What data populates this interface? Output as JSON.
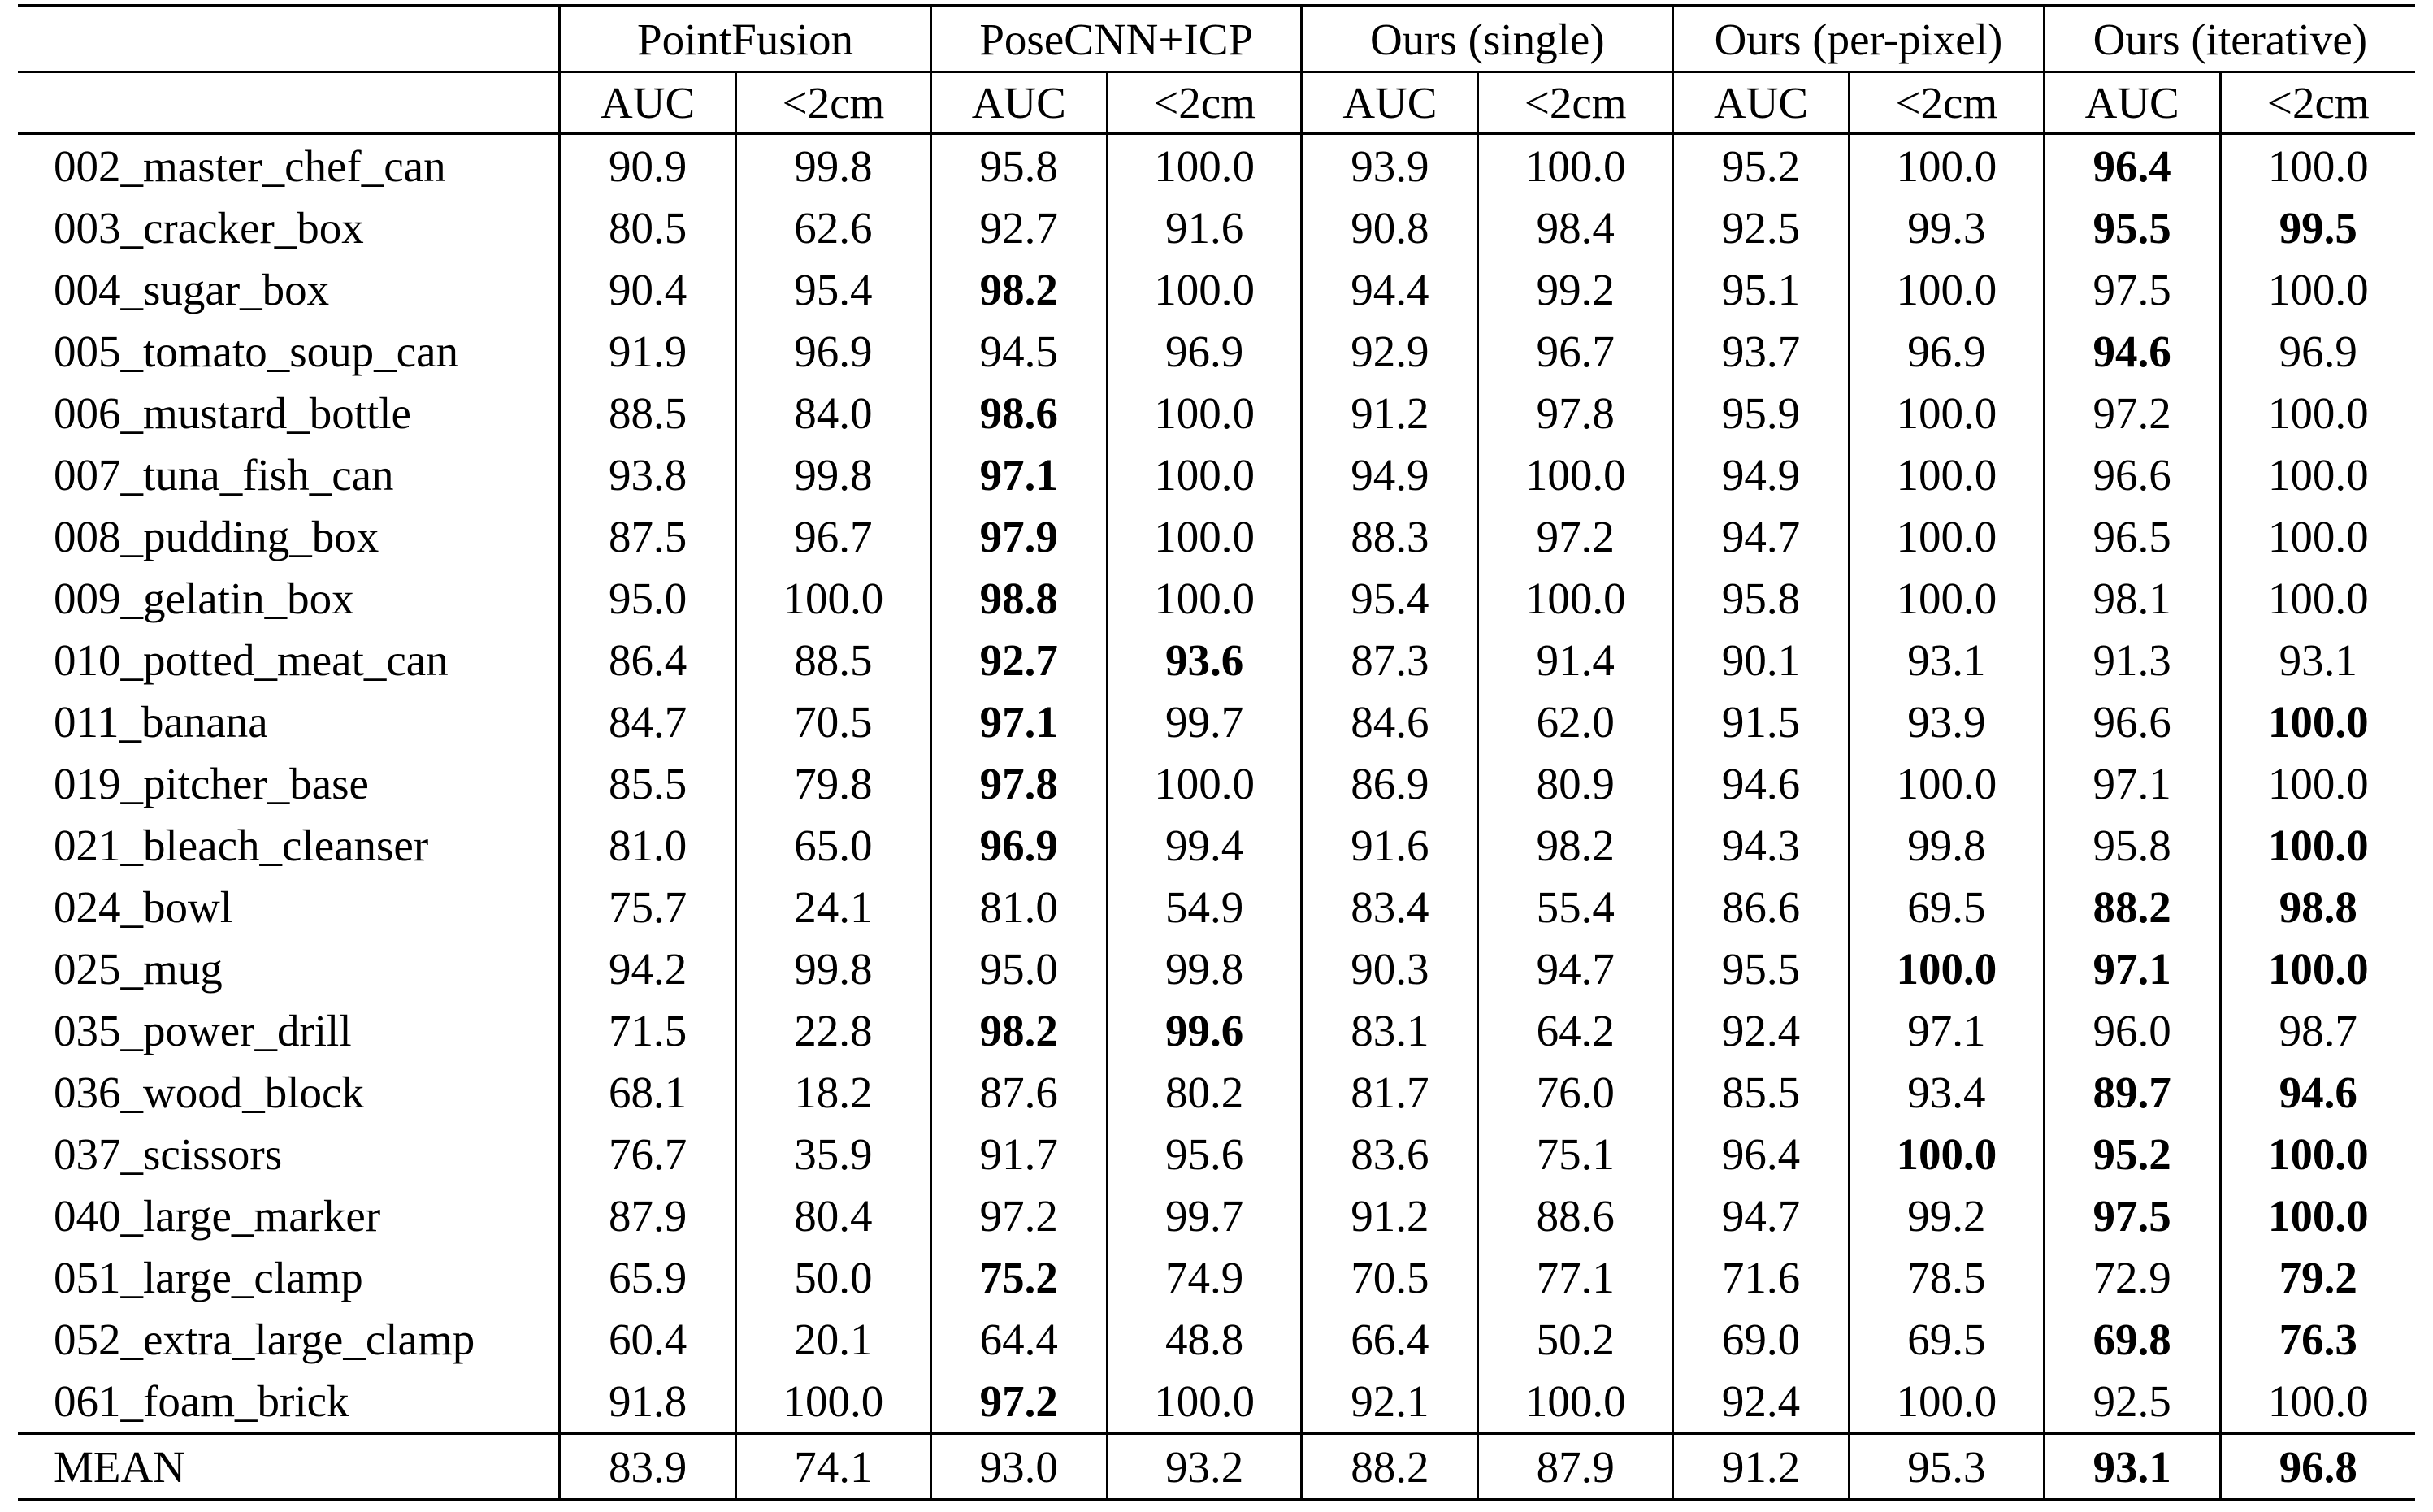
{
  "table": {
    "row_label_header": "",
    "groups": [
      {
        "label": "PointFusion",
        "sub": [
          "AUC",
          "<2cm"
        ]
      },
      {
        "label": "PoseCNN+ICP",
        "sub": [
          "AUC",
          "<2cm"
        ]
      },
      {
        "label": "Ours (single)",
        "sub": [
          "AUC",
          "<2cm"
        ]
      },
      {
        "label": "Ours (per-pixel)",
        "sub": [
          "AUC",
          "<2cm"
        ]
      },
      {
        "label": "Ours (iterative)",
        "sub": [
          "AUC",
          "<2cm"
        ]
      }
    ],
    "rows": [
      {
        "name": "002_master_chef_can",
        "values": [
          "90.9",
          "99.8",
          "95.8",
          "100.0",
          "93.9",
          "100.0",
          "95.2",
          "100.0",
          "96.4",
          "100.0"
        ],
        "bold": [
          8
        ],
        "is_mean": false
      },
      {
        "name": "003_cracker_box",
        "values": [
          "80.5",
          "62.6",
          "92.7",
          "91.6",
          "90.8",
          "98.4",
          "92.5",
          "99.3",
          "95.5",
          "99.5"
        ],
        "bold": [
          8,
          9
        ],
        "is_mean": false
      },
      {
        "name": "004_sugar_box",
        "values": [
          "90.4",
          "95.4",
          "98.2",
          "100.0",
          "94.4",
          "99.2",
          "95.1",
          "100.0",
          "97.5",
          "100.0"
        ],
        "bold": [
          2
        ],
        "is_mean": false
      },
      {
        "name": "005_tomato_soup_can",
        "values": [
          "91.9",
          "96.9",
          "94.5",
          "96.9",
          "92.9",
          "96.7",
          "93.7",
          "96.9",
          "94.6",
          "96.9"
        ],
        "bold": [
          8
        ],
        "is_mean": false
      },
      {
        "name": "006_mustard_bottle",
        "values": [
          "88.5",
          "84.0",
          "98.6",
          "100.0",
          "91.2",
          "97.8",
          "95.9",
          "100.0",
          "97.2",
          "100.0"
        ],
        "bold": [
          2
        ],
        "is_mean": false
      },
      {
        "name": "007_tuna_fish_can",
        "values": [
          "93.8",
          "99.8",
          "97.1",
          "100.0",
          "94.9",
          "100.0",
          "94.9",
          "100.0",
          "96.6",
          "100.0"
        ],
        "bold": [
          2
        ],
        "is_mean": false
      },
      {
        "name": "008_pudding_box",
        "values": [
          "87.5",
          "96.7",
          "97.9",
          "100.0",
          "88.3",
          "97.2",
          "94.7",
          "100.0",
          "96.5",
          "100.0"
        ],
        "bold": [
          2
        ],
        "is_mean": false
      },
      {
        "name": "009_gelatin_box",
        "values": [
          "95.0",
          "100.0",
          "98.8",
          "100.0",
          "95.4",
          "100.0",
          "95.8",
          "100.0",
          "98.1",
          "100.0"
        ],
        "bold": [
          2
        ],
        "is_mean": false
      },
      {
        "name": "010_potted_meat_can",
        "values": [
          "86.4",
          "88.5",
          "92.7",
          "93.6",
          "87.3",
          "91.4",
          "90.1",
          "93.1",
          "91.3",
          "93.1"
        ],
        "bold": [
          2,
          3
        ],
        "is_mean": false
      },
      {
        "name": "011_banana",
        "values": [
          "84.7",
          "70.5",
          "97.1",
          "99.7",
          "84.6",
          "62.0",
          "91.5",
          "93.9",
          "96.6",
          "100.0"
        ],
        "bold": [
          2,
          9
        ],
        "is_mean": false
      },
      {
        "name": "019_pitcher_base",
        "values": [
          "85.5",
          "79.8",
          "97.8",
          "100.0",
          "86.9",
          "80.9",
          "94.6",
          "100.0",
          "97.1",
          "100.0"
        ],
        "bold": [
          2
        ],
        "is_mean": false
      },
      {
        "name": "021_bleach_cleanser",
        "values": [
          "81.0",
          "65.0",
          "96.9",
          "99.4",
          "91.6",
          "98.2",
          "94.3",
          "99.8",
          "95.8",
          "100.0"
        ],
        "bold": [
          2,
          9
        ],
        "is_mean": false
      },
      {
        "name": "024_bowl",
        "values": [
          "75.7",
          "24.1",
          "81.0",
          "54.9",
          "83.4",
          "55.4",
          "86.6",
          "69.5",
          "88.2",
          "98.8"
        ],
        "bold": [
          8,
          9
        ],
        "is_mean": false
      },
      {
        "name": "025_mug",
        "values": [
          "94.2",
          "99.8",
          "95.0",
          "99.8",
          "90.3",
          "94.7",
          "95.5",
          "100.0",
          "97.1",
          "100.0"
        ],
        "bold": [
          7,
          8,
          9
        ],
        "is_mean": false
      },
      {
        "name": "035_power_drill",
        "values": [
          "71.5",
          "22.8",
          "98.2",
          "99.6",
          "83.1",
          "64.2",
          "92.4",
          "97.1",
          "96.0",
          "98.7"
        ],
        "bold": [
          2,
          3
        ],
        "is_mean": false
      },
      {
        "name": "036_wood_block",
        "values": [
          "68.1",
          "18.2",
          "87.6",
          "80.2",
          "81.7",
          "76.0",
          "85.5",
          "93.4",
          "89.7",
          "94.6"
        ],
        "bold": [
          8,
          9
        ],
        "is_mean": false
      },
      {
        "name": "037_scissors",
        "values": [
          "76.7",
          "35.9",
          "91.7",
          "95.6",
          "83.6",
          "75.1",
          "96.4",
          "100.0",
          "95.2",
          "100.0"
        ],
        "bold": [
          7,
          8,
          9
        ],
        "is_mean": false
      },
      {
        "name": "040_large_marker",
        "values": [
          "87.9",
          "80.4",
          "97.2",
          "99.7",
          "91.2",
          "88.6",
          "94.7",
          "99.2",
          "97.5",
          "100.0"
        ],
        "bold": [
          8,
          9
        ],
        "is_mean": false
      },
      {
        "name": "051_large_clamp",
        "values": [
          "65.9",
          "50.0",
          "75.2",
          "74.9",
          "70.5",
          "77.1",
          "71.6",
          "78.5",
          "72.9",
          "79.2"
        ],
        "bold": [
          2,
          9
        ],
        "is_mean": false
      },
      {
        "name": "052_extra_large_clamp",
        "values": [
          "60.4",
          "20.1",
          "64.4",
          "48.8",
          "66.4",
          "50.2",
          "69.0",
          "69.5",
          "69.8",
          "76.3"
        ],
        "bold": [
          8,
          9
        ],
        "is_mean": false
      },
      {
        "name": "061_foam_brick",
        "values": [
          "91.8",
          "100.0",
          "97.2",
          "100.0",
          "92.1",
          "100.0",
          "92.4",
          "100.0",
          "92.5",
          "100.0"
        ],
        "bold": [
          2
        ],
        "is_mean": false
      },
      {
        "name": "MEAN",
        "values": [
          "83.9",
          "74.1",
          "93.0",
          "93.2",
          "88.2",
          "87.9",
          "91.2",
          "95.3",
          "93.1",
          "96.8"
        ],
        "bold": [
          8,
          9
        ],
        "is_mean": true
      }
    ],
    "colors": {
      "text": "#000000",
      "background": "#ffffff",
      "rule": "#000000"
    }
  }
}
